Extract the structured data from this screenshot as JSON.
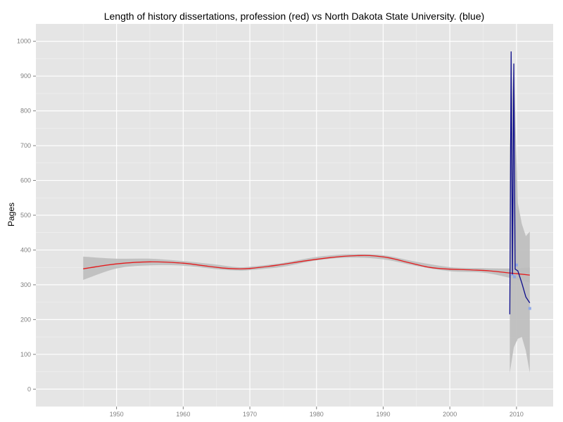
{
  "chart_data": {
    "type": "line",
    "title": "Length of history dissertations, profession (red) vs North Dakota State University. (blue)",
    "xlabel": "",
    "ylabel": "Pages",
    "xlim": [
      1937.9,
      2015.5
    ],
    "ylim": [
      -50,
      1050
    ],
    "x_ticks": [
      1950,
      1960,
      1970,
      1980,
      1990,
      2000,
      2010
    ],
    "y_ticks": [
      0,
      100,
      200,
      300,
      400,
      500,
      600,
      700,
      800,
      900,
      1000
    ],
    "grid": true,
    "legend": "none",
    "series": [
      {
        "color": "#e41a1c",
        "points": [
          [
            1945,
            346
          ],
          [
            1950,
            360
          ],
          [
            1955,
            366
          ],
          [
            1960,
            362
          ],
          [
            1963,
            355
          ],
          [
            1966,
            348
          ],
          [
            1968,
            346
          ],
          [
            1970,
            347
          ],
          [
            1974,
            356
          ],
          [
            1978,
            368
          ],
          [
            1982,
            378
          ],
          [
            1985,
            383
          ],
          [
            1988,
            384
          ],
          [
            1991,
            377
          ],
          [
            1994,
            363
          ],
          [
            1997,
            350
          ],
          [
            2000,
            345
          ],
          [
            2003,
            343
          ],
          [
            2006,
            340
          ],
          [
            2009,
            334
          ],
          [
            2012,
            328
          ]
        ],
        "band": [
          [
            1945,
            314,
            381
          ],
          [
            1950,
            347,
            375
          ],
          [
            1955,
            356,
            375
          ],
          [
            1960,
            355,
            368
          ],
          [
            1965,
            345,
            358
          ],
          [
            1968,
            341,
            351
          ],
          [
            1970,
            342,
            352
          ],
          [
            1975,
            352,
            363
          ],
          [
            1980,
            370,
            380
          ],
          [
            1985,
            378,
            388
          ],
          [
            1990,
            373,
            385
          ],
          [
            1995,
            354,
            366
          ],
          [
            2000,
            339,
            351
          ],
          [
            2005,
            335,
            348
          ],
          [
            2009,
            320,
            347
          ],
          [
            2012,
            306,
            350
          ]
        ]
      },
      {
        "color": "#0d0d8c",
        "points": [
          [
            2009.0,
            215
          ],
          [
            2009.2,
            971
          ],
          [
            2009.4,
            330
          ],
          [
            2009.6,
            936
          ],
          [
            2009.8,
            345
          ],
          [
            2010.2,
            340
          ],
          [
            2010.8,
            305
          ],
          [
            2011.4,
            265
          ],
          [
            2012.0,
            248
          ]
        ],
        "band": [
          [
            2009.0,
            47,
            700
          ],
          [
            2009.6,
            120,
            940
          ],
          [
            2010.2,
            145,
            535
          ],
          [
            2010.8,
            150,
            475
          ],
          [
            2011.4,
            110,
            440
          ],
          [
            2012.0,
            47,
            453
          ]
        ]
      }
    ],
    "scatter_points": [
      [
        2009.4,
        330
      ],
      [
        2009.7,
        323
      ],
      [
        2010.0,
        357
      ],
      [
        2012.0,
        232
      ]
    ],
    "colors": {
      "panel": "#e5e5e5",
      "grid_major": "#ffffff",
      "grid_minor": "#f2f2f2",
      "band": "#bdbdbd",
      "scatter": "#8fa8e8"
    }
  }
}
